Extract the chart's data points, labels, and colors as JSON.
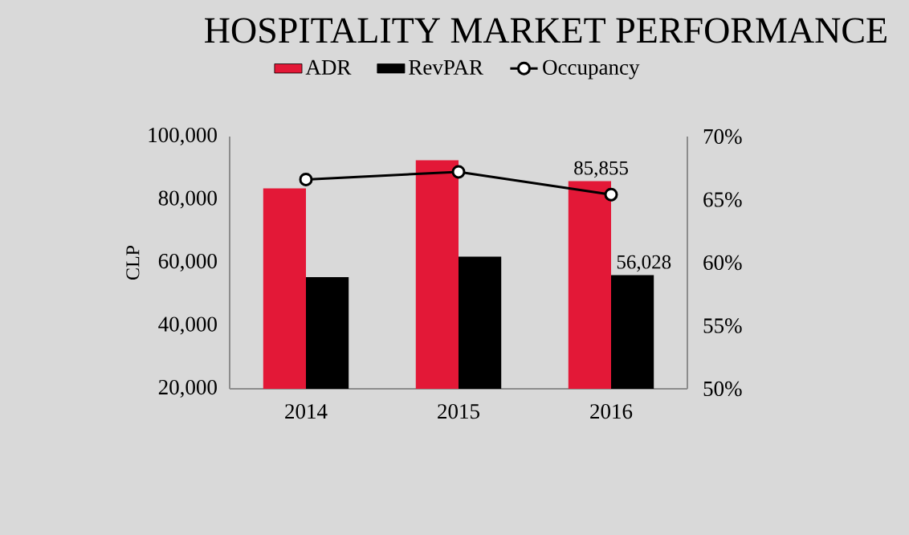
{
  "chart_data": {
    "type": "bar",
    "title": "HOSPITALITY MARKET PERFORMANCE",
    "ylabel": "CLP",
    "categories": [
      "2014",
      "2015",
      "2016"
    ],
    "series": [
      {
        "name": "ADR",
        "type": "bar",
        "color": "#e31837",
        "values": [
          83600,
          92500,
          85855
        ],
        "value_labels": [
          null,
          null,
          "85,855"
        ]
      },
      {
        "name": "RevPAR",
        "type": "bar",
        "color": "#000000",
        "values": [
          55400,
          61900,
          56028
        ],
        "value_labels": [
          null,
          null,
          "56,028"
        ]
      },
      {
        "name": "Occupancy",
        "type": "line",
        "axis": "y2",
        "color": "#000000",
        "marker": "circle",
        "values": [
          66.6,
          67.2,
          65.4
        ]
      }
    ],
    "ylim": [
      20000,
      100000
    ],
    "yticks": [
      {
        "value": 20000,
        "label": "20,000"
      },
      {
        "value": 40000,
        "label": "40,000"
      },
      {
        "value": 60000,
        "label": "60,000"
      },
      {
        "value": 80000,
        "label": "80,000"
      },
      {
        "value": 100000,
        "label": "100,000"
      }
    ],
    "y2lim": [
      50,
      70
    ],
    "y2ticks": [
      {
        "value": 50,
        "label": "50%"
      },
      {
        "value": 55,
        "label": "55%"
      },
      {
        "value": 60,
        "label": "60%"
      },
      {
        "value": 65,
        "label": "65%"
      },
      {
        "value": 70,
        "label": "70%"
      }
    ],
    "legend": "top"
  }
}
